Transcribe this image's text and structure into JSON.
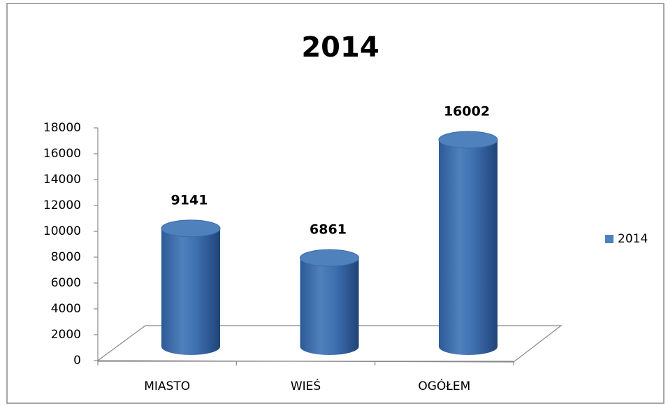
{
  "chart_data": {
    "type": "bar",
    "title": "2014",
    "categories": [
      "MIASTO",
      "WIEŚ",
      "OGÓŁEM"
    ],
    "series": [
      {
        "name": "2014",
        "color": "#4f81bd",
        "values": [
          9141,
          6861,
          16002
        ]
      }
    ],
    "ylim": [
      0,
      18000
    ],
    "yticks": [
      0,
      2000,
      4000,
      6000,
      8000,
      10000,
      12000,
      14000,
      16000,
      18000
    ],
    "legend": "right"
  }
}
